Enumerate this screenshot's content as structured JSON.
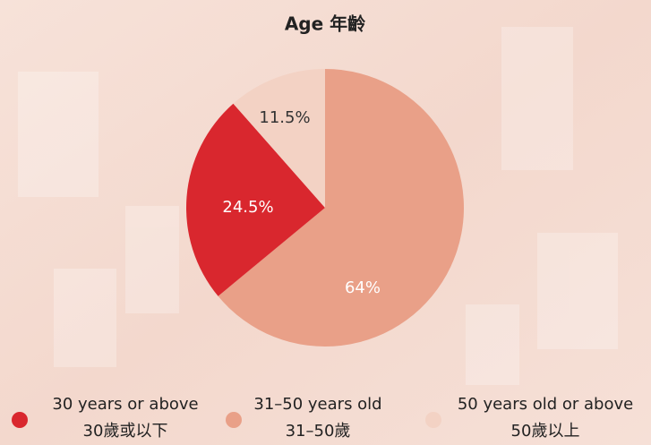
{
  "chart_data": {
    "type": "pie",
    "title": "Age 年齡",
    "categories": [
      [
        "30 years or above",
        "30歲或以下"
      ],
      [
        "31–50 years old",
        "31–50歲"
      ],
      [
        "50 years old or above",
        "50歲以上"
      ]
    ],
    "values": [
      24.5,
      64,
      11.5
    ],
    "value_labels": [
      "24.5%",
      "64%",
      "11.5%"
    ],
    "colors": [
      "#d9272e",
      "#e9a088",
      "#f3d2c4"
    ]
  }
}
